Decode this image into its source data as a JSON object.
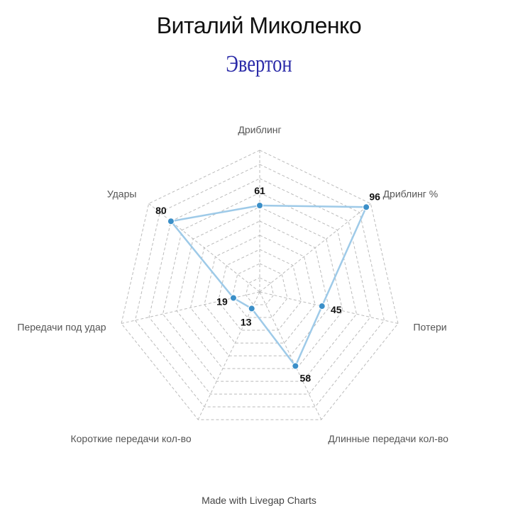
{
  "header": {
    "title": "Виталий Миколенко",
    "subtitle": "Эвертон"
  },
  "footer": {
    "credit": "Made with Livegap Charts"
  },
  "chart_data": {
    "type": "radar",
    "axes": [
      "Дриблинг",
      "Дриблинг %",
      "Потери",
      "Длинные передачи кол-во",
      "Короткие передачи кол-во",
      "Передачи под удар",
      "Удары"
    ],
    "series": [
      {
        "values": [
          61,
          96,
          45,
          58,
          13,
          19,
          80
        ]
      }
    ],
    "range": [
      0,
      100
    ],
    "gridlines": 10,
    "grid": true,
    "colors": {
      "line": "#9ecae8",
      "point": "#3b8fc8",
      "grid": "#bbbbbb",
      "subtitle": "#2a2aa8"
    }
  }
}
